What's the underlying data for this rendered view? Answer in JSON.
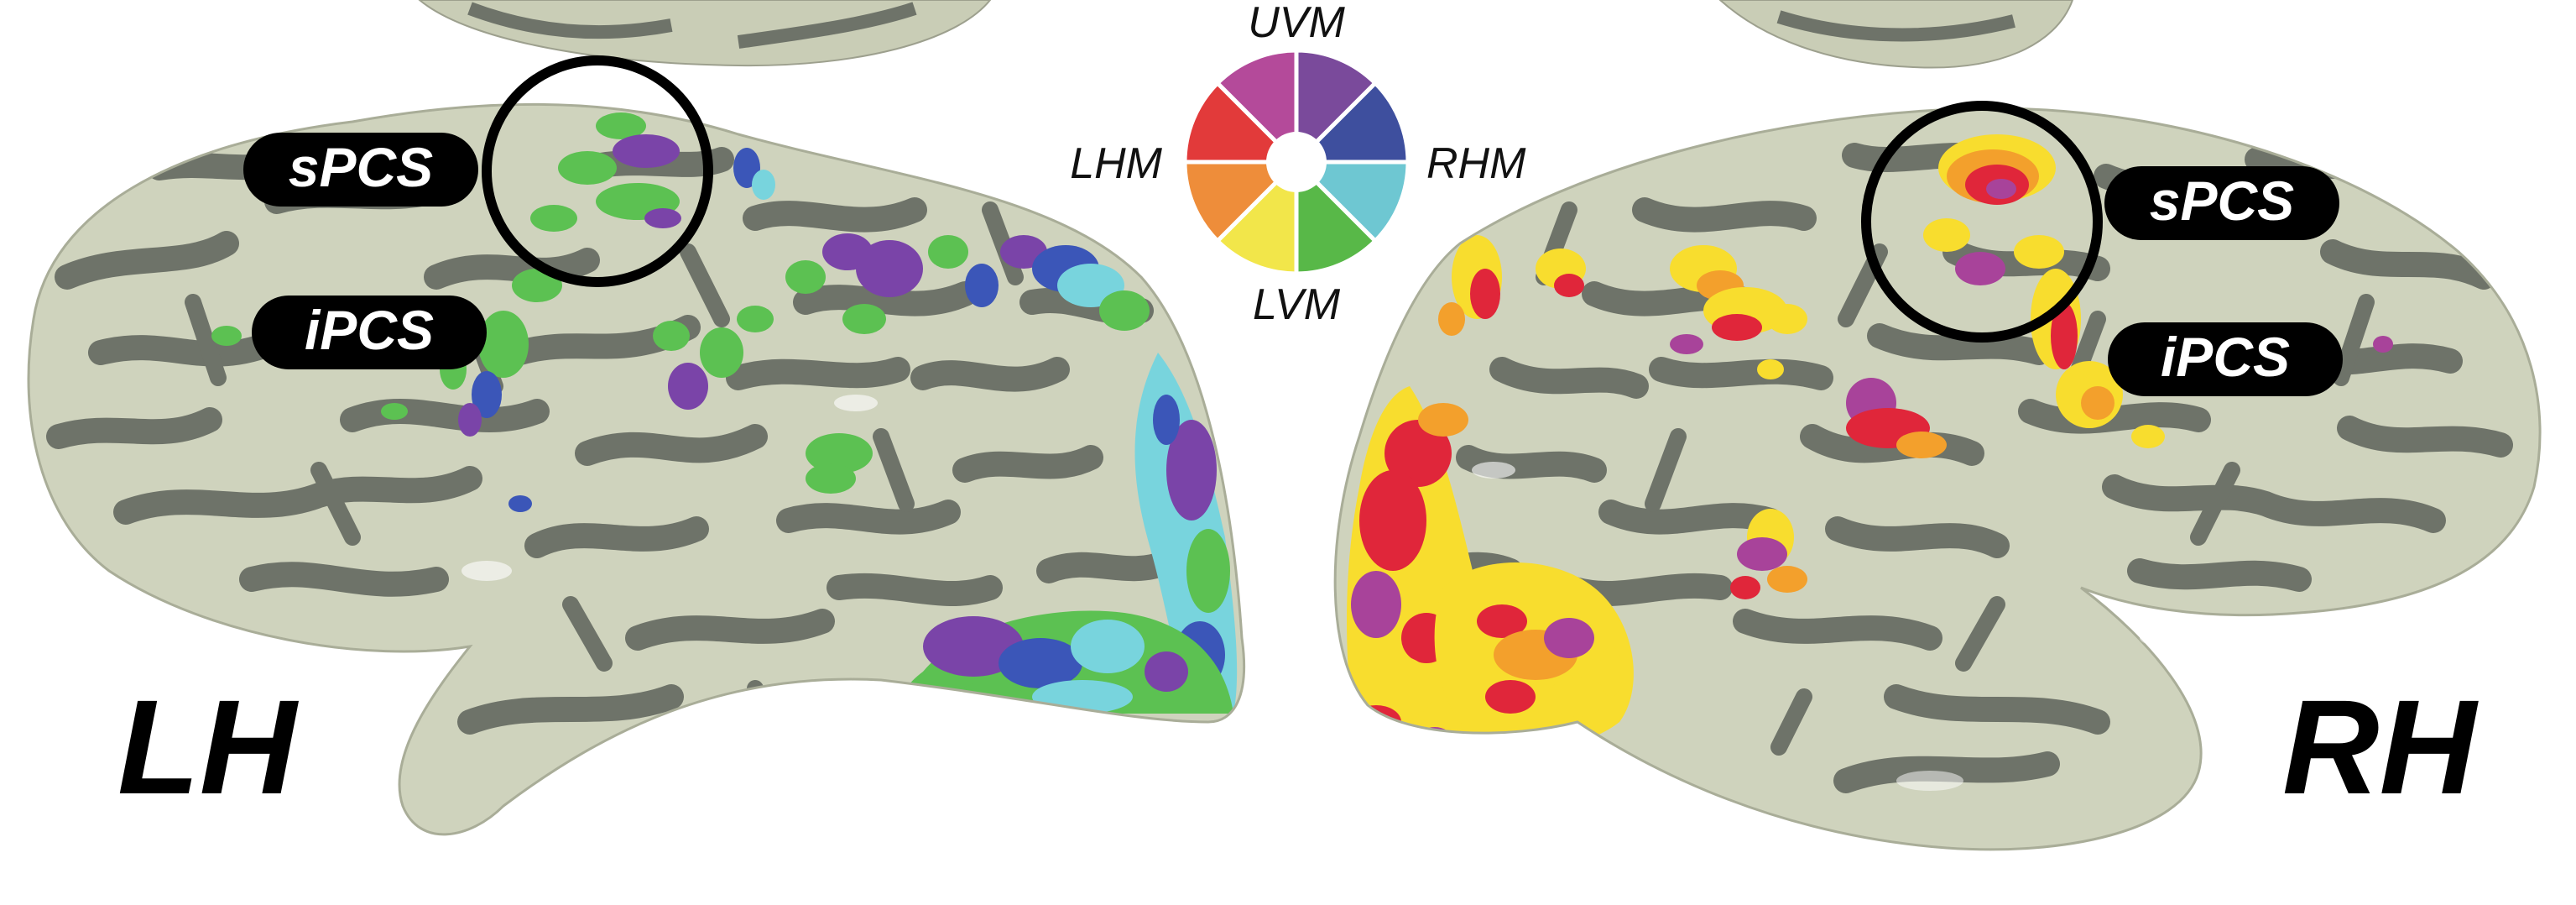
{
  "labels": {
    "left_sPCS": "sPCS",
    "left_iPCS": "iPCS",
    "right_sPCS": "sPCS",
    "right_iPCS": "iPCS",
    "hemi_left": "LH",
    "hemi_right": "RH"
  },
  "legend": {
    "top": "UVM",
    "bottom": "LVM",
    "left": "LHM",
    "right": "RHM",
    "segment_colors": [
      "#7a4a9b",
      "#3e4f9e",
      "#6ec7d2",
      "#58b848",
      "#f2e64a",
      "#ee8d3a",
      "#e23a3a",
      "#b44a9a"
    ]
  },
  "colors": {
    "brain_light": "#cfd3bd",
    "brain_dark": "#6e7369",
    "left_map_green": "#5cc152",
    "left_map_purple": "#7a44a8",
    "left_map_blue": "#3b56b8",
    "left_map_cyan": "#78d4dd",
    "right_map_yellow": "#f8dd2e",
    "right_map_orange": "#f3a02c",
    "right_map_red": "#e0263a",
    "right_map_magenta": "#a8439a"
  }
}
